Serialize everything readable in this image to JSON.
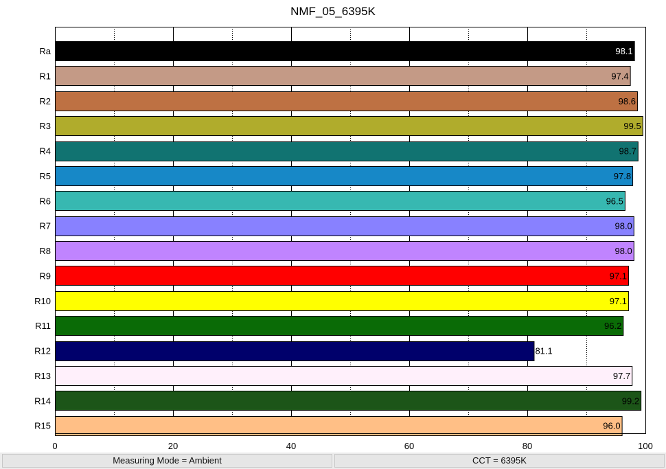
{
  "chart_data": {
    "type": "bar",
    "orientation": "horizontal",
    "title": "NMF_05_6395K",
    "xlabel": "",
    "ylabel": "",
    "xlim": [
      0,
      100
    ],
    "x_ticks": [
      "0",
      "20",
      "40",
      "60",
      "80",
      "100"
    ],
    "minor_grid_at": [
      10,
      30,
      50,
      70,
      90
    ],
    "grid": "dotted minor vertical gridlines",
    "categories": [
      "Ra",
      "R1",
      "R2",
      "R3",
      "R4",
      "R5",
      "R6",
      "R7",
      "R8",
      "R9",
      "R10",
      "R11",
      "R12",
      "R13",
      "R14",
      "R15"
    ],
    "values": [
      98.1,
      97.4,
      98.6,
      99.5,
      98.7,
      97.8,
      96.5,
      98.0,
      98.0,
      97.1,
      97.1,
      96.2,
      81.1,
      97.7,
      99.2,
      96.0
    ],
    "value_labels": [
      "98.1",
      "97.4",
      "98.6",
      "99.5",
      "98.7",
      "97.8",
      "96.5",
      "98.0",
      "98.0",
      "97.1",
      "97.1",
      "96.2",
      "81.1",
      "97.7",
      "99.2",
      "96.0"
    ],
    "colors": [
      "#000000",
      "#c49a86",
      "#be7143",
      "#b0ac2c",
      "#117371",
      "#1788c7",
      "#37b8b1",
      "#8881ff",
      "#c084ff",
      "#ff0000",
      "#ffff00",
      "#0a6b06",
      "#00006b",
      "#fff0fb",
      "#1c5518",
      "#ffbf86"
    ],
    "label_colors": [
      "#ffffff",
      "#000000",
      "#000000",
      "#000000",
      "#000000",
      "#000000",
      "#000000",
      "#000000",
      "#000000",
      "#000000",
      "#000000",
      "#000000",
      "#000000",
      "#000000",
      "#000000",
      "#000000"
    ]
  },
  "status_bar": {
    "left": "Measuring Mode = Ambient",
    "right": "CCT = 6395K"
  }
}
